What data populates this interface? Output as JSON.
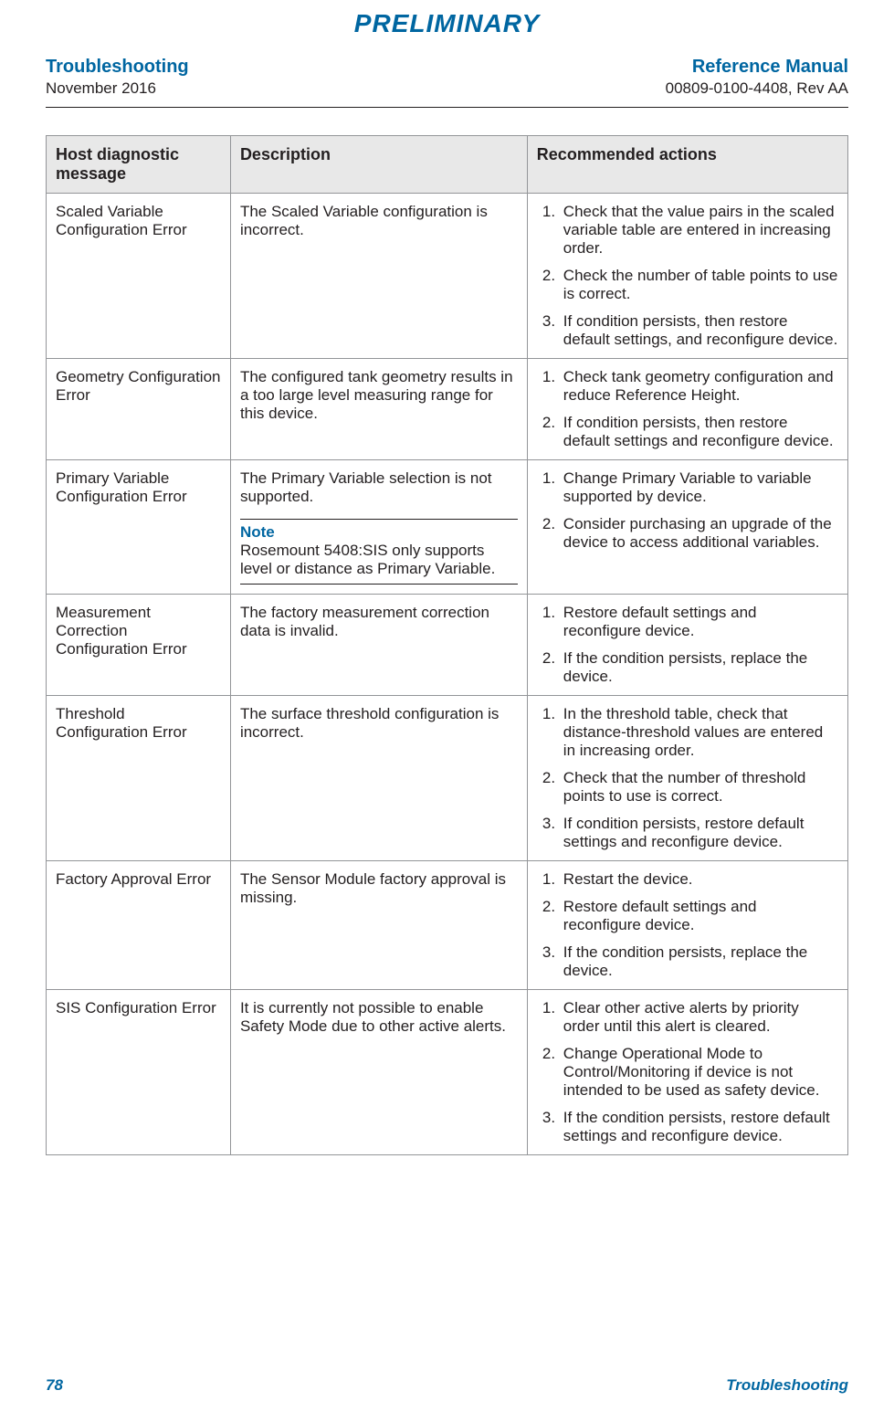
{
  "colors": {
    "accent": "#0066a1",
    "text": "#231f20",
    "header_bg": "#e8e8e8",
    "border": "#939598"
  },
  "fontsizes": {
    "watermark": 28,
    "header_title": 20,
    "header_sub": 17,
    "table_header": 18,
    "body": 17,
    "note_title": 17,
    "footer": 17
  },
  "watermark": "PRELIMINARY",
  "header": {
    "left_title": "Troubleshooting",
    "left_sub": "November 2016",
    "right_title": "Reference Manual",
    "right_sub": "00809-0100-4408, Rev AA"
  },
  "table": {
    "columns": [
      "Host diagnostic message",
      "Description",
      "Recommended actions"
    ],
    "rows": [
      {
        "message": "Scaled Variable Configuration Error",
        "description": "The Scaled Variable configuration is incorrect.",
        "note": null,
        "actions": [
          "Check that the value pairs in the scaled variable table are entered in increasing order.",
          "Check the number of table points to use is correct.",
          "If condition persists, then restore default settings, and reconfigure device."
        ]
      },
      {
        "message": "Geometry Configuration Error",
        "description": "The configured tank geometry results in a too large level measuring range for this device.",
        "note": null,
        "actions": [
          "Check tank geometry configuration and reduce Reference Height.",
          "If condition persists, then restore default settings and reconfigure device."
        ]
      },
      {
        "message": "Primary Variable Configuration Error",
        "description": "The Primary Variable selection is not supported.",
        "note": {
          "title": "Note",
          "body": "Rosemount 5408:SIS only supports level or distance as Primary Variable."
        },
        "actions": [
          "Change Primary Variable to variable supported by device.",
          "Consider purchasing an upgrade of the device to access additional variables."
        ]
      },
      {
        "message": "Measurement Correction Configuration Error",
        "description": "The factory measurement correction data is invalid.",
        "note": null,
        "actions": [
          "Restore default settings and reconfigure device.",
          "If the condition persists, replace the device."
        ]
      },
      {
        "message": "Threshold Configuration Error",
        "description": "The surface threshold configuration is incorrect.",
        "note": null,
        "actions": [
          " In the threshold table, check that distance-threshold values are entered in increasing order.",
          "Check that the number of threshold points to use is correct.",
          "If condition persists, restore default settings and reconfigure device."
        ]
      },
      {
        "message": "Factory Approval Error",
        "description": "The Sensor Module factory approval is missing.",
        "note": null,
        "actions": [
          " Restart the device.",
          "Restore default settings and reconfigure device.",
          "If the condition persists, replace the device."
        ]
      },
      {
        "message": "SIS Configuration Error",
        "description": "It is currently not possible to enable Safety Mode due to other active alerts.",
        "note": null,
        "actions": [
          "Clear other active alerts by priority order until this alert is cleared.",
          "Change Operational Mode to Control/Monitoring if device is not intended to be used as safety device.",
          "If the condition persists, restore default settings and reconfigure device."
        ]
      }
    ]
  },
  "footer": {
    "page_number": "78",
    "section": "Troubleshooting"
  }
}
